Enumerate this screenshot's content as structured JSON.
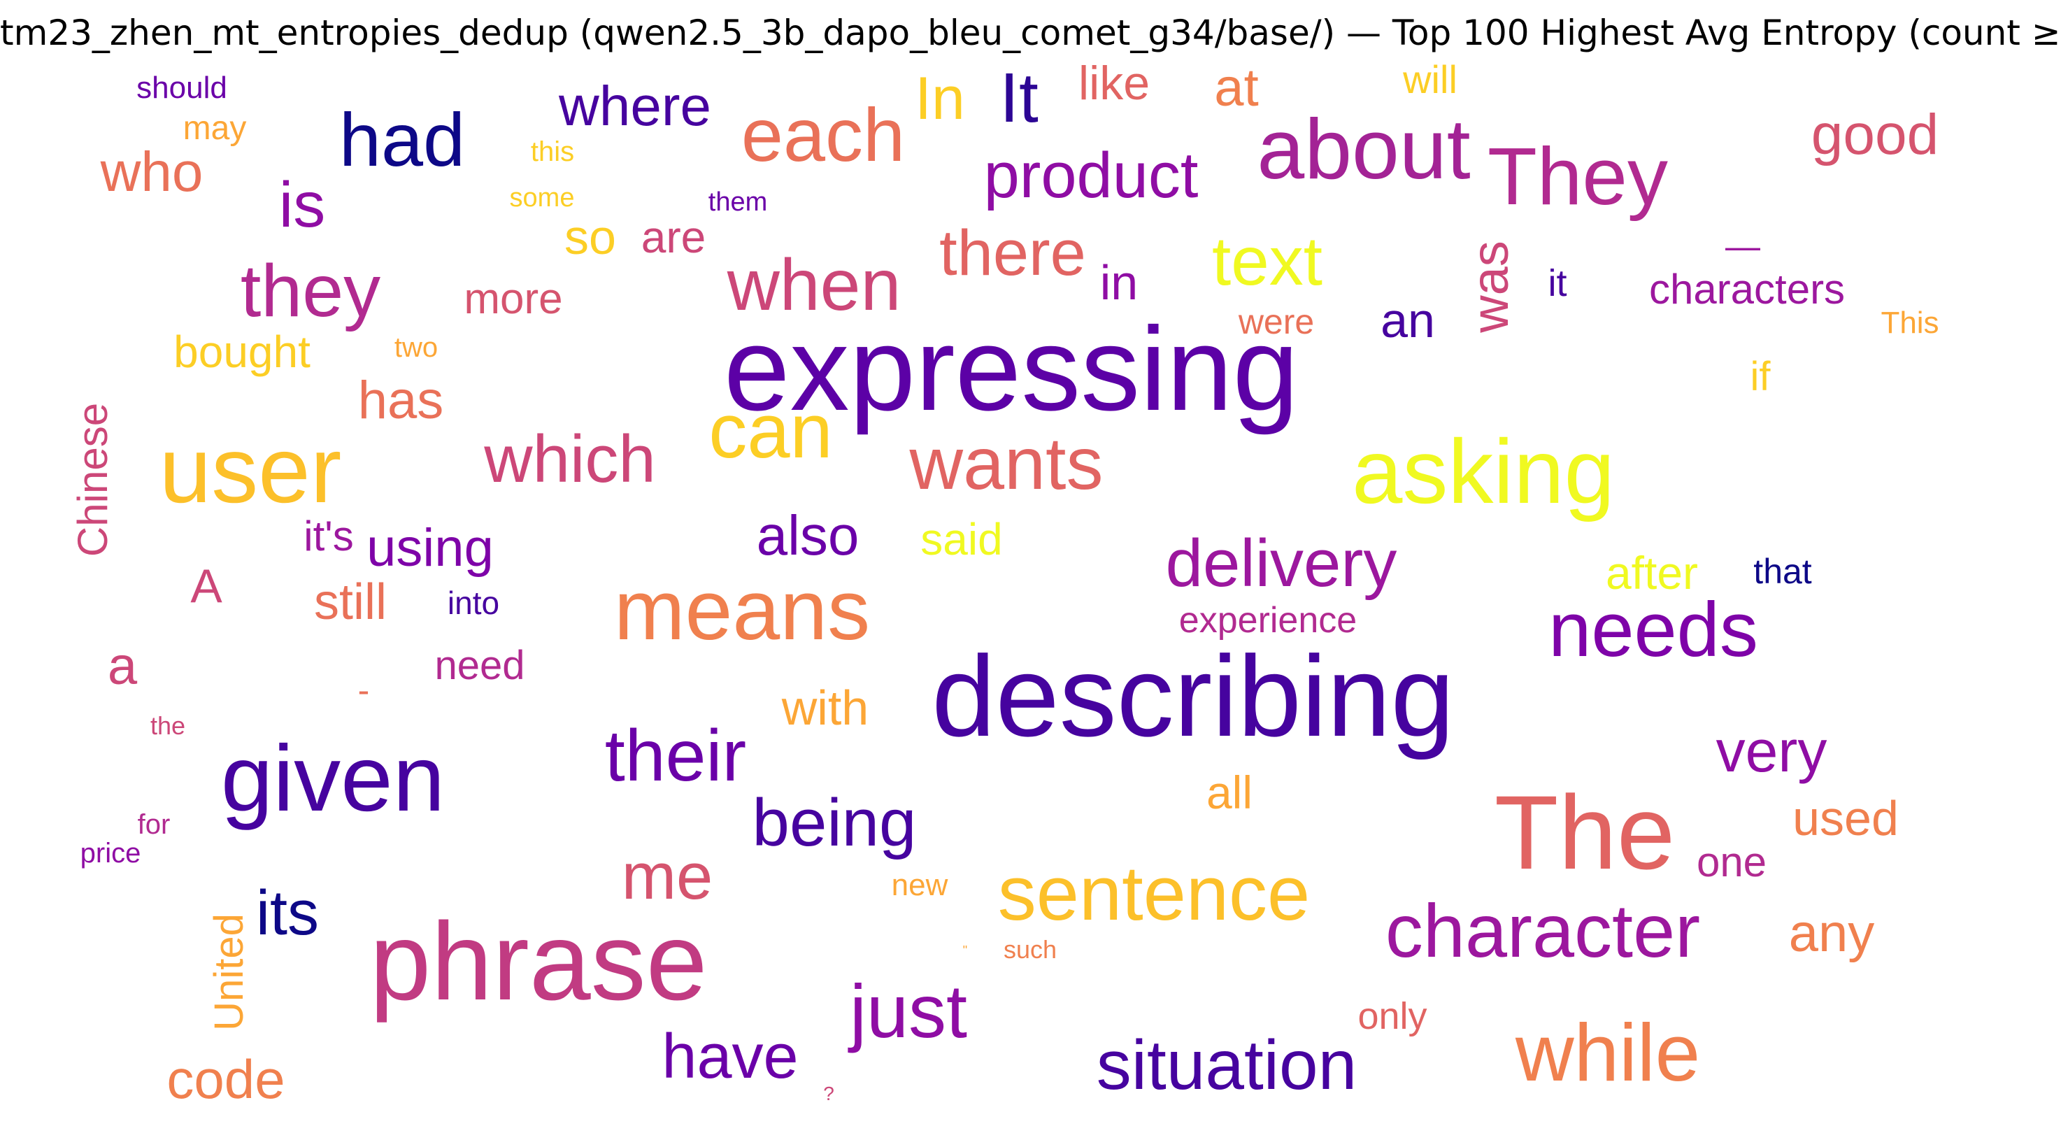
{
  "title": "tm23_zhen_mt_entropies_dedup (qwen2.5_3b_dapo_bleu_comet_g34/base/) — Top 100 Highest Avg Entropy (count ≥",
  "words": [
    {
      "text": "should",
      "color": "#6a00a8"
    },
    {
      "text": "may",
      "color": "#fca636"
    },
    {
      "text": "who",
      "color": "#e97158"
    },
    {
      "text": "had",
      "color": "#0d0887"
    },
    {
      "text": "this",
      "color": "#fcce25"
    },
    {
      "text": "some",
      "color": "#fcce25"
    },
    {
      "text": "them",
      "color": "#6a00a8"
    },
    {
      "text": "where",
      "color": "#46039f"
    },
    {
      "text": "In",
      "color": "#fcce25"
    },
    {
      "text": "It",
      "color": "#2c0594"
    },
    {
      "text": "like",
      "color": "#e16462"
    },
    {
      "text": "at",
      "color": "#f0804e"
    },
    {
      "text": "will",
      "color": "#fcce25"
    },
    {
      "text": "each",
      "color": "#e97158"
    },
    {
      "text": "about",
      "color": "#a32395"
    },
    {
      "text": "They",
      "color": "#b12a90"
    },
    {
      "text": "good",
      "color": "#d5546e"
    },
    {
      "text": "is",
      "color": "#8f0da4"
    },
    {
      "text": "product",
      "color": "#8f0da4"
    },
    {
      "text": "so",
      "color": "#fcce25"
    },
    {
      "text": "are",
      "color": "#cc4778"
    },
    {
      "text": "they",
      "color": "#b12a90"
    },
    {
      "text": "more",
      "color": "#d5546e"
    },
    {
      "text": "when",
      "color": "#cc4778"
    },
    {
      "text": "there",
      "color": "#e16462"
    },
    {
      "text": "in",
      "color": "#8f0da4"
    },
    {
      "text": "text",
      "color": "#f0f921"
    },
    {
      "text": "was",
      "color": "#cc4778"
    },
    {
      "text": "—",
      "color": "#9c179e"
    },
    {
      "text": "it",
      "color": "#46039f"
    },
    {
      "text": "characters",
      "color": "#9c179e"
    },
    {
      "text": "were",
      "color": "#e97158"
    },
    {
      "text": "an",
      "color": "#46039f"
    },
    {
      "text": "This",
      "color": "#fca636"
    },
    {
      "text": "bought",
      "color": "#fcce25"
    },
    {
      "text": "two",
      "color": "#fca636"
    },
    {
      "text": "expressing",
      "color": "#5c01a6"
    },
    {
      "text": "if",
      "color": "#fcce25"
    },
    {
      "text": "Chinese",
      "color": "#cc4778"
    },
    {
      "text": "has",
      "color": "#e97158"
    },
    {
      "text": "user",
      "color": "#fcc02a"
    },
    {
      "text": "which",
      "color": "#cc4778"
    },
    {
      "text": "can",
      "color": "#fcce25"
    },
    {
      "text": "wants",
      "color": "#e16462"
    },
    {
      "text": "asking",
      "color": "#f0f921"
    },
    {
      "text": "it's",
      "color": "#9c179e"
    },
    {
      "text": "using",
      "color": "#7e03a8"
    },
    {
      "text": "also",
      "color": "#6a00a8"
    },
    {
      "text": "said",
      "color": "#f0f921"
    },
    {
      "text": "delivery",
      "color": "#9c179e"
    },
    {
      "text": "A",
      "color": "#cc4778"
    },
    {
      "text": "still",
      "color": "#e97158"
    },
    {
      "text": "into",
      "color": "#46039f"
    },
    {
      "text": "means",
      "color": "#f0804e"
    },
    {
      "text": "after",
      "color": "#f0f921"
    },
    {
      "text": "that",
      "color": "#0d0887"
    },
    {
      "text": "experience",
      "color": "#b12a90"
    },
    {
      "text": "needs",
      "color": "#7e03a8"
    },
    {
      "text": "a",
      "color": "#cc4778"
    },
    {
      "text": "need",
      "color": "#b12a90"
    },
    {
      "text": "-",
      "color": "#e97158"
    },
    {
      "text": "describing",
      "color": "#46039f"
    },
    {
      "text": "with",
      "color": "#fca636"
    },
    {
      "text": "the",
      "color": "#cc4778"
    },
    {
      "text": "their",
      "color": "#6a00a8"
    },
    {
      "text": "very",
      "color": "#8f0da4"
    },
    {
      "text": "given",
      "color": "#46039f"
    },
    {
      "text": "all",
      "color": "#fca636"
    },
    {
      "text": "being",
      "color": "#46039f"
    },
    {
      "text": "The",
      "color": "#e16462"
    },
    {
      "text": "used",
      "color": "#f0804e"
    },
    {
      "text": "for",
      "color": "#b12a90"
    },
    {
      "text": "price",
      "color": "#8f0da4"
    },
    {
      "text": "me",
      "color": "#d5546e"
    },
    {
      "text": "one",
      "color": "#b12a90"
    },
    {
      "text": "its",
      "color": "#0d0887"
    },
    {
      "text": "new",
      "color": "#fca636"
    },
    {
      "text": "sentence",
      "color": "#fcc02a"
    },
    {
      "text": "character",
      "color": "#9c179e"
    },
    {
      "text": "United",
      "color": "#fca636"
    },
    {
      "text": "phrase",
      "color": "#c13b82"
    },
    {
      "text": "\"",
      "color": "#fca636"
    },
    {
      "text": "such",
      "color": "#f0804e"
    },
    {
      "text": "any",
      "color": "#f0804e"
    },
    {
      "text": "just",
      "color": "#8f0da4"
    },
    {
      "text": "only",
      "color": "#e16462"
    },
    {
      "text": "code",
      "color": "#f0804e"
    },
    {
      "text": "have",
      "color": "#6a00a8"
    },
    {
      "text": "situation",
      "color": "#46039f"
    },
    {
      "text": "while",
      "color": "#f0804e"
    },
    {
      "text": "?",
      "color": "#cc4778"
    }
  ]
}
